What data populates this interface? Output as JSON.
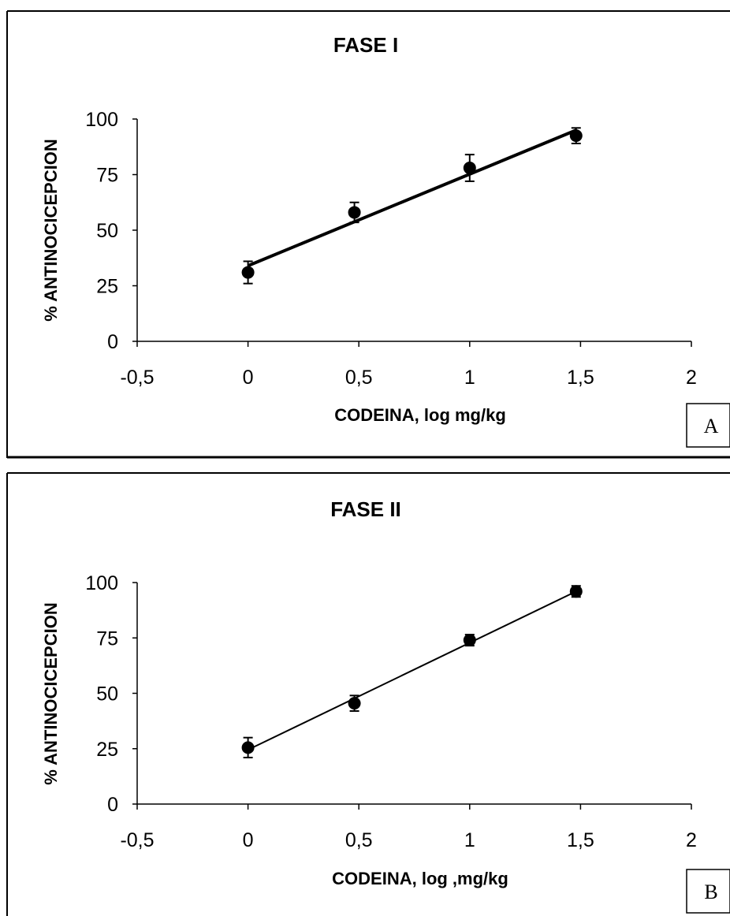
{
  "chart_data": [
    {
      "type": "scatter",
      "title": "FASE I",
      "xlabel": "CODEINA, log mg/kg",
      "ylabel": "% ANTINOCICEPCION",
      "panel_label": "A",
      "xlim": [
        -0.5,
        2
      ],
      "ylim": [
        0,
        100
      ],
      "xticks": [
        -0.5,
        0,
        0.5,
        1,
        1.5,
        2
      ],
      "xtick_labels": [
        "-0,5",
        "0",
        "0,5",
        "1",
        "1,5",
        "2"
      ],
      "yticks": [
        0,
        25,
        50,
        75,
        100
      ],
      "ytick_labels": [
        "0",
        "25",
        "50",
        "75",
        "100"
      ],
      "grid": false,
      "series": [
        {
          "x": [
            0,
            0.48,
            1.0,
            1.48
          ],
          "y": [
            31,
            58,
            78,
            92.5
          ],
          "err": [
            5,
            4.5,
            6,
            3.5
          ]
        }
      ],
      "fit_line": {
        "x": [
          0,
          1.48
        ],
        "y": [
          34,
          95
        ]
      },
      "colors": {
        "marker": "#000000",
        "line": "#000000"
      }
    },
    {
      "type": "scatter",
      "title": "FASE II",
      "xlabel": "CODEINA, log ,mg/kg",
      "ylabel": "% ANTINOCICEPCION",
      "panel_label": "B",
      "xlim": [
        -0.5,
        2
      ],
      "ylim": [
        0,
        100
      ],
      "xticks": [
        -0.5,
        0,
        0.5,
        1,
        1.5,
        2
      ],
      "xtick_labels": [
        "-0,5",
        "0",
        "0,5",
        "1",
        "1,5",
        "2"
      ],
      "yticks": [
        0,
        25,
        50,
        75,
        100
      ],
      "ytick_labels": [
        "0",
        "25",
        "50",
        "75",
        "100"
      ],
      "grid": false,
      "series": [
        {
          "x": [
            0,
            0.48,
            1.0,
            1.48
          ],
          "y": [
            25.5,
            45.5,
            74,
            96
          ],
          "err": [
            4.5,
            3.5,
            2.5,
            2.5
          ]
        }
      ],
      "fit_line": {
        "x": [
          0,
          1.48
        ],
        "y": [
          24.5,
          96
        ]
      },
      "colors": {
        "marker": "#000000",
        "line": "#000000"
      }
    }
  ]
}
